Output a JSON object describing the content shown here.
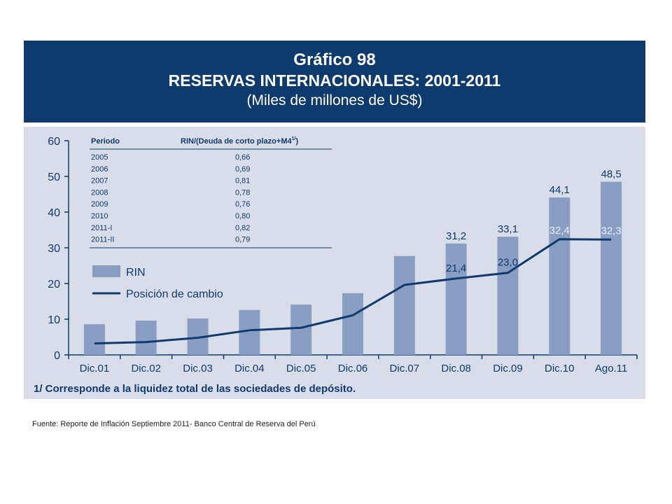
{
  "header": {
    "title": "Gráfico 98",
    "subtitle": "RESERVAS INTERNACIONALES: 2001-2011",
    "units": "(Miles de millones de US$)"
  },
  "colors": {
    "header_bg": "#0e3a6e",
    "chart_bg": "#d8dde9",
    "bar": "#8a9ec3",
    "line": "#0e3a6e",
    "text": "#0e3a6e"
  },
  "chart_data": {
    "type": "bar",
    "categories": [
      "Dic.01",
      "Dic.02",
      "Dic.03",
      "Dic.04",
      "Dic.05",
      "Dic.06",
      "Dic.07",
      "Dic.08",
      "Dic.09",
      "Dic.10",
      "Ago.11"
    ],
    "series": [
      {
        "name": "RIN",
        "type": "bar",
        "values": [
          8.6,
          9.6,
          10.2,
          12.6,
          14.1,
          17.3,
          27.7,
          31.2,
          33.1,
          44.1,
          48.5
        ],
        "labels": [
          "",
          "",
          "",
          "",
          "",
          "",
          "",
          "31,2",
          "33,1",
          "44,1",
          "48,5"
        ]
      },
      {
        "name": "Posición de cambio",
        "type": "line",
        "values": [
          3.2,
          3.6,
          4.8,
          6.9,
          7.6,
          11.1,
          19.6,
          21.4,
          23.0,
          32.4,
          32.3
        ],
        "labels": [
          "",
          "",
          "",
          "",
          "",
          "",
          "",
          "21,4",
          "23,0",
          "32,4",
          "32,3"
        ]
      }
    ],
    "yticks": [
      "0",
      "10",
      "20",
      "30",
      "40",
      "50",
      "60"
    ],
    "ylim": [
      0,
      60
    ],
    "legend_position": "left-middle",
    "inset_table": {
      "headers": [
        "Periodo",
        "RIN/(Deuda de corto plazo+M4",
        "1/",
        ")"
      ],
      "rows": [
        [
          "2005",
          "0,66"
        ],
        [
          "2006",
          "0,69"
        ],
        [
          "2007",
          "0,81"
        ],
        [
          "2008",
          "0,78"
        ],
        [
          "2009",
          "0,76"
        ],
        [
          "2010",
          "0,80"
        ],
        [
          "2011-I",
          "0,82"
        ],
        [
          "2011-II",
          "0,79"
        ]
      ]
    },
    "footnote": "1/ Corresponde a la liquidez total de las sociedades de depósito."
  },
  "source": "Fuente: Reporte de Inflación Septiembre 2011- Banco Central de Reserva del Perú"
}
